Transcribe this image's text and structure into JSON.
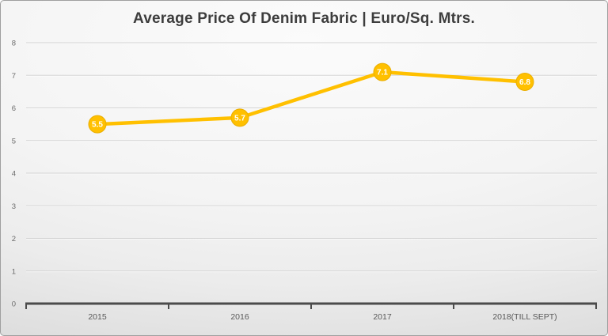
{
  "chart_data": {
    "type": "line",
    "title": "Average Price Of Denim Fabric | Euro/Sq. Mtrs.",
    "xlabel": "",
    "ylabel": "",
    "categories": [
      "2015",
      "2016",
      "2017",
      "2018(TILL SEPT)"
    ],
    "values": [
      5.5,
      5.7,
      7.1,
      6.8
    ],
    "point_labels": [
      "5.5",
      "5.7",
      "7.1",
      "6.8"
    ],
    "ylim": [
      0,
      8
    ],
    "yticks": [
      0,
      1,
      2,
      3,
      4,
      5,
      6,
      7,
      8
    ],
    "grid": "horizontal",
    "legend_position": "none",
    "colors": {
      "line": "#FFC000",
      "marker_fill": "#FFC000",
      "marker_edge": "#EAAE00",
      "marker_label": "#FFFFFF",
      "axis": "#4B4B4B",
      "gridline": "#D3D3D3",
      "gridline_highlight": "#FFFFFF",
      "tick_label": "#595959",
      "title": "#3D3D3D"
    }
  }
}
